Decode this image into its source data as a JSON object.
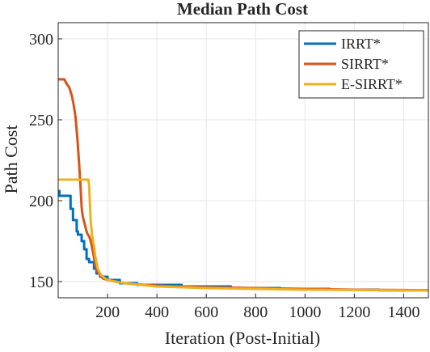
{
  "chart_data": {
    "type": "line",
    "title": "Median Path Cost",
    "xlabel": "Iteration (Post-Initial)",
    "ylabel": "Path Cost",
    "xlim": [
      0,
      1500
    ],
    "ylim": [
      140,
      310
    ],
    "xticks": [
      200,
      400,
      600,
      800,
      1000,
      1200,
      1400
    ],
    "yticks": [
      150,
      200,
      250,
      300
    ],
    "grid": true,
    "legend_position": "top-right",
    "series": [
      {
        "name": "IRRT*",
        "color": "#0072BD",
        "step": true,
        "x": [
          0,
          5,
          5,
          50,
          50,
          60,
          60,
          75,
          75,
          80,
          80,
          95,
          95,
          105,
          105,
          115,
          115,
          125,
          125,
          145,
          145,
          155,
          155,
          170,
          170,
          200,
          200,
          250,
          250,
          320,
          320,
          500,
          500,
          700,
          700,
          900,
          900,
          1100,
          1100,
          1300,
          1300,
          1500
        ],
        "y": [
          206,
          206,
          203,
          203,
          195,
          195,
          188,
          188,
          181,
          181,
          179,
          179,
          175,
          175,
          170,
          170,
          164,
          164,
          162,
          162,
          158,
          158,
          155,
          155,
          153,
          153,
          151,
          151,
          149,
          149,
          148,
          148,
          147,
          147,
          146,
          146,
          145.5,
          145.5,
          145,
          145,
          144.6,
          144.6
        ]
      },
      {
        "name": "SIRRT*",
        "color": "#D95319",
        "step": false,
        "x": [
          0,
          25,
          35,
          45,
          55,
          62,
          70,
          78,
          84,
          90,
          95,
          100,
          105,
          110,
          115,
          120,
          125,
          130,
          135,
          140,
          145,
          150,
          160,
          170,
          180,
          200,
          250,
          300,
          400,
          500,
          600,
          800,
          1000,
          1200,
          1400,
          1500
        ],
        "y": [
          275,
          275,
          272,
          270,
          265,
          260,
          252,
          238,
          225,
          210,
          196,
          190,
          187,
          184,
          181,
          179,
          178,
          176,
          173,
          169,
          165,
          160,
          156,
          154,
          152,
          151,
          149.5,
          148.5,
          147.5,
          147,
          146.5,
          146,
          145.5,
          145,
          144.8,
          144.6
        ]
      },
      {
        "name": "E-SIRRT*",
        "color": "#EDB120",
        "step": false,
        "x": [
          0,
          122,
          125,
          128,
          132,
          138,
          145,
          150,
          155,
          160,
          170,
          180,
          200,
          250,
          300,
          400,
          500,
          600,
          800,
          1000,
          1200,
          1400,
          1500
        ],
        "y": [
          213,
          213,
          210,
          200,
          187,
          178,
          172,
          166,
          162,
          158,
          155,
          153,
          151,
          149.5,
          148.5,
          147,
          146.5,
          146,
          145.5,
          145,
          144.8,
          144.6,
          144.5
        ]
      }
    ]
  }
}
